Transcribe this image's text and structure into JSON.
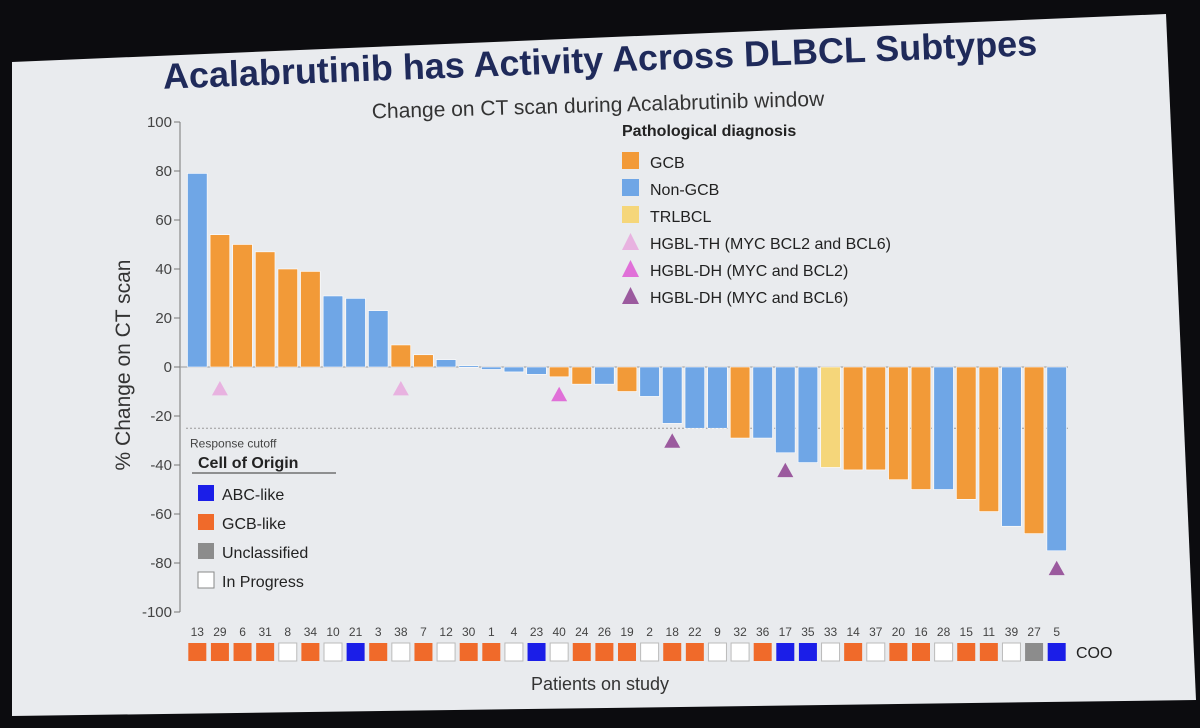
{
  "slide": {
    "title": "Acalabrutinib has Activity Across DLBCL Subtypes"
  },
  "chart_data": {
    "type": "bar",
    "title": "Change on CT scan during Acalabrutinib window",
    "ylabel": "% Change on CT scan",
    "xlabel": "Patients on study",
    "ylim": [
      -100,
      100
    ],
    "yticks": [
      100,
      80,
      60,
      40,
      20,
      0,
      -20,
      -40,
      -60,
      -80,
      -100
    ],
    "response_cutoff": {
      "label": "Response cutoff",
      "value": -25
    },
    "coo_label": "COO",
    "colors": {
      "GCB": "#f29a38",
      "Non-GCB": "#6fa6e6",
      "TRLBCL": "#f5d67a",
      "HGBL-TH": "#e8b2e0",
      "HGBL-DH2": "#e070d8",
      "HGBL-DH6": "#9b5a9e",
      "ABC-like": "#1b1ee8",
      "GCB-like": "#f06a2a",
      "Unclassified": "#8c8c8c",
      "In Progress": "#ffffff"
    },
    "patients": [
      "13",
      "29",
      "6",
      "31",
      "8",
      "34",
      "10",
      "21",
      "3",
      "38",
      "7",
      "12",
      "30",
      "1",
      "4",
      "23",
      "40",
      "24",
      "26",
      "19",
      "2",
      "18",
      "22",
      "9",
      "32",
      "36",
      "17",
      "35",
      "33",
      "14",
      "37",
      "20",
      "16",
      "28",
      "15",
      "11",
      "39",
      "27",
      "5"
    ],
    "values": [
      79,
      54,
      50,
      47,
      40,
      39,
      29,
      28,
      23,
      9,
      5,
      3,
      0.5,
      -1,
      -2,
      -3,
      -4,
      -7,
      -7,
      -10,
      -12,
      -23,
      -25,
      -25,
      -29,
      -29,
      -35,
      -39,
      -41,
      -42,
      -42,
      -46,
      -50,
      -50,
      -54,
      -59,
      -65,
      -68,
      -75
    ],
    "diagnosis": [
      "Non-GCB",
      "GCB",
      "GCB",
      "GCB",
      "GCB",
      "GCB",
      "Non-GCB",
      "Non-GCB",
      "Non-GCB",
      "GCB",
      "GCB",
      "Non-GCB",
      "Non-GCB",
      "Non-GCB",
      "Non-GCB",
      "Non-GCB",
      "GCB",
      "GCB",
      "Non-GCB",
      "GCB",
      "Non-GCB",
      "Non-GCB",
      "Non-GCB",
      "Non-GCB",
      "GCB",
      "Non-GCB",
      "Non-GCB",
      "Non-GCB",
      "TRLBCL",
      "GCB",
      "GCB",
      "GCB",
      "GCB",
      "Non-GCB",
      "GCB",
      "GCB",
      "Non-GCB",
      "GCB",
      "Non-GCB"
    ],
    "coo": [
      "GCB-like",
      "GCB-like",
      "GCB-like",
      "GCB-like",
      "In Progress",
      "GCB-like",
      "In Progress",
      "ABC-like",
      "GCB-like",
      "In Progress",
      "GCB-like",
      "In Progress",
      "GCB-like",
      "GCB-like",
      "In Progress",
      "ABC-like",
      "In Progress",
      "GCB-like",
      "GCB-like",
      "GCB-like",
      "In Progress",
      "GCB-like",
      "GCB-like",
      "In Progress",
      "In Progress",
      "GCB-like",
      "ABC-like",
      "ABC-like",
      "In Progress",
      "GCB-like",
      "In Progress",
      "GCB-like",
      "GCB-like",
      "In Progress",
      "GCB-like",
      "GCB-like",
      "In Progress",
      "Unclassified",
      "ABC-like"
    ],
    "markers": [
      {
        "patient_index": 1,
        "type": "HGBL-TH"
      },
      {
        "patient_index": 9,
        "type": "HGBL-TH"
      },
      {
        "patient_index": 16,
        "type": "HGBL-DH2"
      },
      {
        "patient_index": 21,
        "type": "HGBL-DH6"
      },
      {
        "patient_index": 26,
        "type": "HGBL-DH6"
      },
      {
        "patient_index": 38,
        "type": "HGBL-DH6"
      }
    ],
    "legend_diagnosis": {
      "title": "Pathological diagnosis",
      "items": [
        {
          "label": "GCB",
          "key": "GCB",
          "shape": "square"
        },
        {
          "label": "Non-GCB",
          "key": "Non-GCB",
          "shape": "square"
        },
        {
          "label": "TRLBCL",
          "key": "TRLBCL",
          "shape": "square"
        },
        {
          "label": "HGBL-TH (MYC BCL2 and BCL6)",
          "key": "HGBL-TH",
          "shape": "triangle"
        },
        {
          "label": "HGBL-DH (MYC and BCL2)",
          "key": "HGBL-DH2",
          "shape": "triangle"
        },
        {
          "label": "HGBL-DH (MYC and BCL6)",
          "key": "HGBL-DH6",
          "shape": "triangle"
        }
      ]
    },
    "legend_coo": {
      "title": "Cell of Origin",
      "items": [
        {
          "label": "ABC-like",
          "key": "ABC-like"
        },
        {
          "label": "GCB-like",
          "key": "GCB-like"
        },
        {
          "label": "Unclassified",
          "key": "Unclassified"
        },
        {
          "label": "In Progress",
          "key": "In Progress"
        }
      ]
    }
  }
}
